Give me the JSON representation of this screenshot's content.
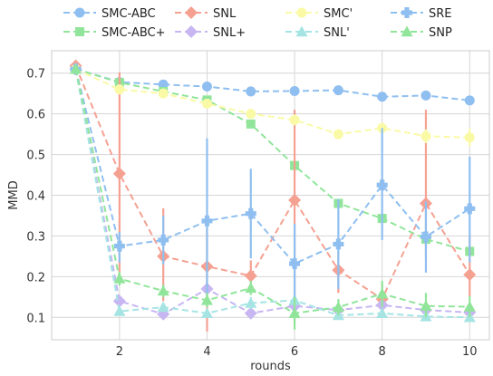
{
  "chart_data": {
    "type": "line",
    "xlabel": "rounds",
    "ylabel": "MMD",
    "xlim": [
      0.45,
      10.45
    ],
    "ylim": [
      0.045,
      0.755
    ],
    "x": [
      1,
      2,
      3,
      4,
      5,
      6,
      7,
      8,
      9,
      10
    ],
    "xticks": [
      2,
      4,
      6,
      8,
      10
    ],
    "yticks": [
      0.1,
      0.2,
      0.3,
      0.4,
      0.5,
      0.6,
      0.7
    ],
    "grid": true,
    "legend_position": "top",
    "series": [
      {
        "name": "SMC-ABC",
        "color": "#8fbff0",
        "marker": "circle",
        "values": [
          0.71,
          0.678,
          0.672,
          0.667,
          0.655,
          0.656,
          0.658,
          0.642,
          0.645,
          0.633
        ],
        "err_low": [
          0.71,
          0.67,
          0.668,
          0.662,
          0.652,
          0.653,
          0.655,
          0.638,
          0.641,
          0.628
        ],
        "err_high": [
          0.71,
          0.686,
          0.676,
          0.672,
          0.658,
          0.659,
          0.661,
          0.646,
          0.649,
          0.638
        ]
      },
      {
        "name": "SMC-ABC+",
        "color": "#90e59a",
        "marker": "square",
        "values": [
          0.71,
          0.677,
          0.655,
          0.634,
          0.575,
          0.473,
          0.38,
          0.343,
          0.292,
          0.262
        ],
        "err_low": [
          0.71,
          0.672,
          0.651,
          0.628,
          0.567,
          0.463,
          0.372,
          0.335,
          0.285,
          0.255
        ],
        "err_high": [
          0.71,
          0.682,
          0.659,
          0.64,
          0.583,
          0.483,
          0.388,
          0.351,
          0.299,
          0.269
        ]
      },
      {
        "name": "SNL",
        "color": "#f5a192",
        "marker": "diamond",
        "values": [
          0.718,
          0.453,
          0.25,
          0.225,
          0.202,
          0.388,
          0.216,
          0.145,
          0.38,
          0.205
        ],
        "err_low": [
          0.715,
          0.205,
          0.14,
          0.065,
          0.17,
          0.085,
          0.16,
          0.125,
          0.245,
          0.15
        ],
        "err_high": [
          0.72,
          0.702,
          0.368,
          0.32,
          0.24,
          0.61,
          0.26,
          0.18,
          0.61,
          0.3
        ]
      },
      {
        "name": "SNL+",
        "color": "#c7b6f2",
        "marker": "diamond",
        "values": [
          0.71,
          0.14,
          0.108,
          0.17,
          0.11,
          0.128,
          0.118,
          0.13,
          0.118,
          0.112
        ],
        "err_low": [
          0.71,
          0.128,
          0.095,
          0.15,
          0.1,
          0.115,
          0.108,
          0.12,
          0.108,
          0.102
        ],
        "err_high": [
          0.71,
          0.152,
          0.12,
          0.19,
          0.12,
          0.14,
          0.128,
          0.14,
          0.128,
          0.122
        ]
      },
      {
        "name": "SMC'",
        "color": "#fafaa6",
        "marker": "circle",
        "values": [
          0.71,
          0.66,
          0.65,
          0.625,
          0.6,
          0.585,
          0.55,
          0.565,
          0.545,
          0.542
        ],
        "err_low": [
          0.71,
          0.655,
          0.645,
          0.618,
          0.592,
          0.572,
          0.54,
          0.552,
          0.528,
          0.52
        ],
        "err_high": [
          0.71,
          0.665,
          0.655,
          0.632,
          0.608,
          0.598,
          0.56,
          0.578,
          0.562,
          0.564
        ]
      },
      {
        "name": "SNL'",
        "color": "#a6e4e4",
        "marker": "triangle",
        "values": [
          0.71,
          0.115,
          0.125,
          0.11,
          0.135,
          0.142,
          0.105,
          0.11,
          0.102,
          0.1
        ],
        "err_low": [
          0.71,
          0.108,
          0.115,
          0.1,
          0.12,
          0.125,
          0.095,
          0.1,
          0.095,
          0.093
        ],
        "err_high": [
          0.71,
          0.122,
          0.135,
          0.12,
          0.15,
          0.158,
          0.115,
          0.12,
          0.11,
          0.107
        ]
      },
      {
        "name": "SRE",
        "color": "#8fbff0",
        "marker": "plus",
        "values": [
          0.71,
          0.275,
          0.29,
          0.337,
          0.355,
          0.232,
          0.28,
          0.425,
          0.298,
          0.367
        ],
        "err_low": [
          0.71,
          0.235,
          0.23,
          0.14,
          0.245,
          0.135,
          0.17,
          0.29,
          0.21,
          0.235
        ],
        "err_high": [
          0.71,
          0.31,
          0.35,
          0.54,
          0.465,
          0.33,
          0.39,
          0.565,
          0.385,
          0.495
        ]
      },
      {
        "name": "SNP",
        "color": "#90e59a",
        "marker": "triangle",
        "values": [
          0.71,
          0.195,
          0.165,
          0.142,
          0.172,
          0.11,
          0.125,
          0.158,
          0.128,
          0.126
        ],
        "err_low": [
          0.71,
          0.178,
          0.15,
          0.125,
          0.155,
          0.07,
          0.105,
          0.125,
          0.1,
          0.1
        ],
        "err_high": [
          0.71,
          0.212,
          0.18,
          0.16,
          0.19,
          0.15,
          0.145,
          0.19,
          0.16,
          0.152
        ]
      }
    ]
  }
}
